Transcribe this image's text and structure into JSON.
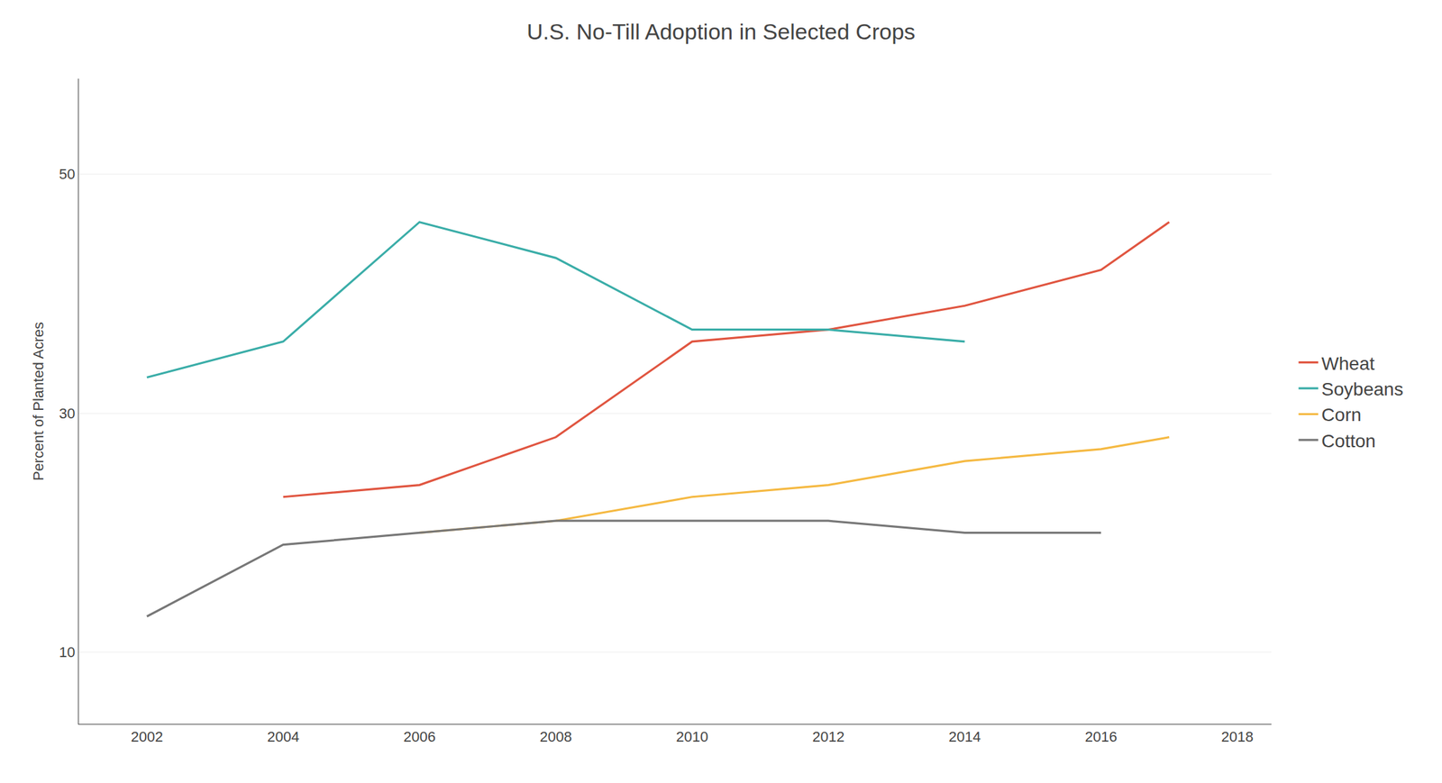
{
  "chart_data": {
    "type": "line",
    "title": "U.S. No-Till Adoption in Selected Crops",
    "ylabel": "Percent of Planted Acres",
    "series": [
      {
        "name": "Wheat",
        "color": "#e05540",
        "x": [
          2004,
          2006,
          2008,
          2010,
          2012,
          2014,
          2016,
          2017
        ],
        "values": [
          23,
          24,
          28,
          36,
          37,
          39,
          42,
          46
        ]
      },
      {
        "name": "Soybeans",
        "color": "#3aada8",
        "x": [
          2002,
          2004,
          2006,
          2008,
          2010,
          2012,
          2014
        ],
        "values": [
          33,
          36,
          46,
          43,
          37,
          37,
          36
        ]
      },
      {
        "name": "Corn",
        "color": "#f5b942",
        "x": [
          2006,
          2008,
          2010,
          2012,
          2014,
          2016,
          2017
        ],
        "values": [
          20,
          21,
          23,
          24,
          26,
          27,
          28
        ]
      },
      {
        "name": "Cotton",
        "color": "#777777",
        "x": [
          2002,
          2004,
          2006,
          2008,
          2010,
          2012,
          2014,
          2016
        ],
        "values": [
          13,
          19,
          20,
          21,
          21,
          21,
          20,
          20
        ]
      }
    ],
    "xlim": [
      2001,
      2018.5
    ],
    "ylim": [
      4,
      58
    ],
    "xticks": [
      2002,
      2004,
      2006,
      2008,
      2010,
      2012,
      2014,
      2016,
      2018
    ],
    "yticks": [
      10,
      30,
      50
    ],
    "grid": "y",
    "legend": "right"
  }
}
